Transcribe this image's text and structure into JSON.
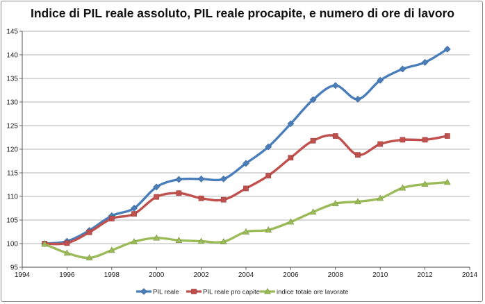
{
  "chart_data": {
    "type": "line",
    "title": "Indice di PIL reale assoluto, PIL reale procapite, e numero di ore di lavoro",
    "xlabel": "",
    "ylabel": "",
    "xlim": [
      1994,
      2014
    ],
    "ylim": [
      95,
      145
    ],
    "xticks": [
      1994,
      1996,
      1998,
      2000,
      2002,
      2004,
      2006,
      2008,
      2010,
      2012,
      2014
    ],
    "yticks": [
      95,
      100,
      105,
      110,
      115,
      120,
      125,
      130,
      135,
      140,
      145
    ],
    "grid": "horizontal",
    "legend_position": "bottom",
    "x": [
      1995,
      1996,
      1997,
      1998,
      1999,
      2000,
      2001,
      2002,
      2003,
      2004,
      2005,
      2006,
      2007,
      2008,
      2009,
      2010,
      2011,
      2012,
      2013
    ],
    "series": [
      {
        "name": "PIL reale",
        "color": "#4a7ebb",
        "marker": "diamond",
        "values": [
          100,
          100.5,
          102.8,
          105.9,
          107.5,
          112.0,
          113.6,
          113.7,
          113.7,
          117.0,
          120.5,
          125.4,
          130.5,
          133.5,
          130.6,
          134.6,
          137.0,
          138.4,
          141.2
        ]
      },
      {
        "name": "PIL reale pro capite",
        "color": "#c0504d",
        "marker": "square",
        "values": [
          100,
          100.1,
          102.4,
          105.3,
          106.3,
          109.9,
          110.7,
          109.6,
          109.3,
          111.7,
          114.4,
          118.2,
          121.8,
          122.8,
          118.8,
          121.1,
          122.0,
          122.0,
          122.8
        ]
      },
      {
        "name": "indice totale ore lavorate",
        "color": "#9bbb59",
        "marker": "triangle",
        "values": [
          99.9,
          98.0,
          97.0,
          98.6,
          100.4,
          101.2,
          100.7,
          100.5,
          100.4,
          102.5,
          102.9,
          104.6,
          106.7,
          108.5,
          108.9,
          109.6,
          111.8,
          112.6,
          113.0
        ]
      }
    ]
  }
}
